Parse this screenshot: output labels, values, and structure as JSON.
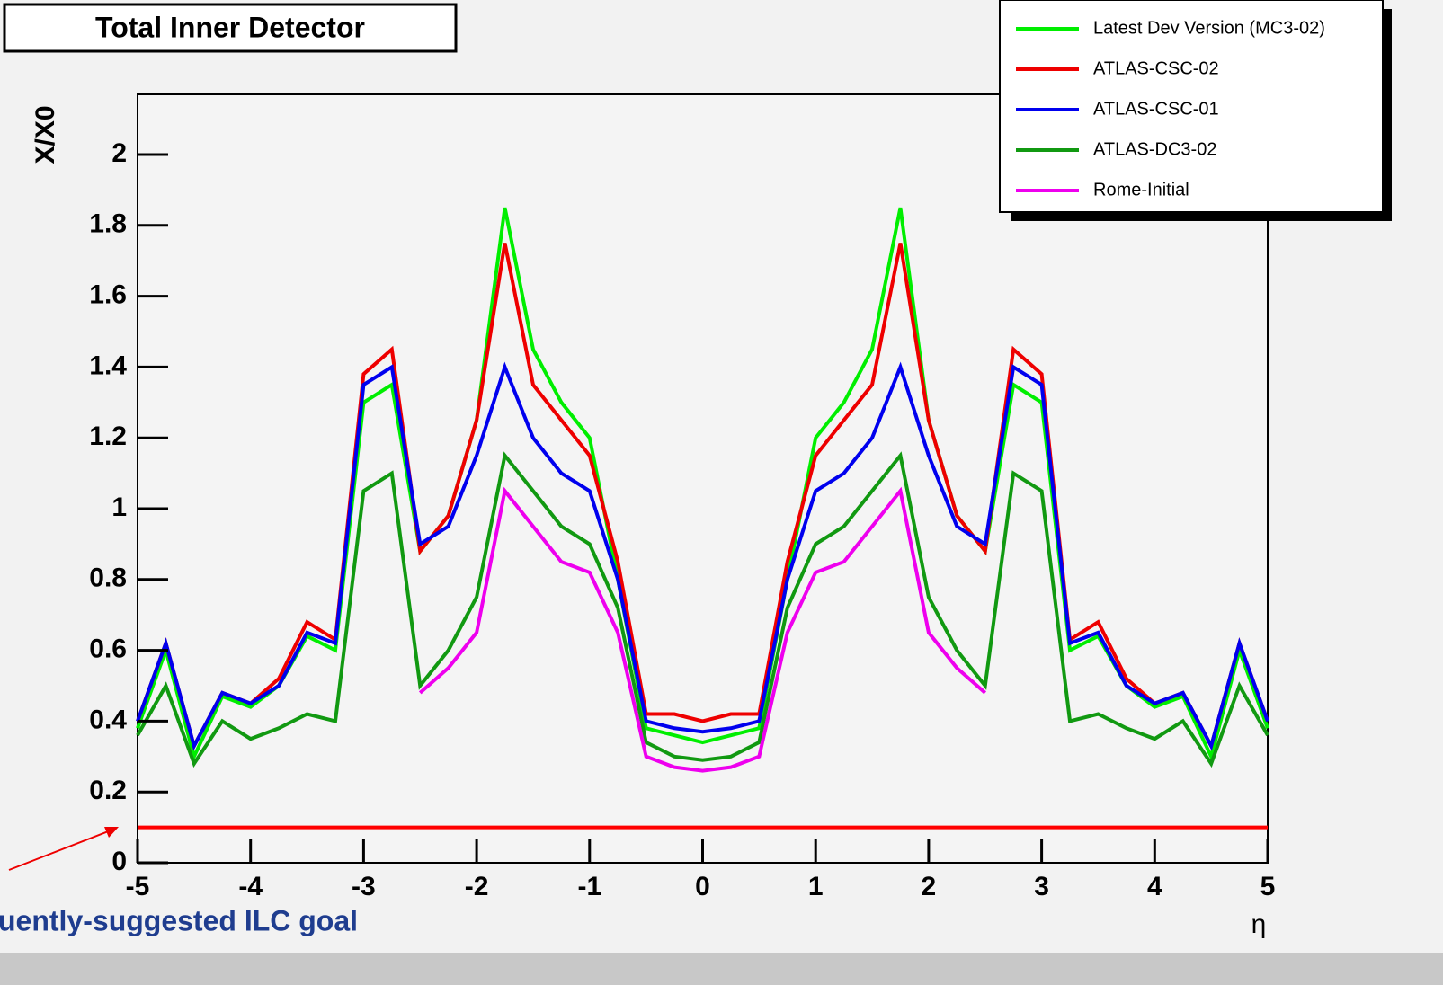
{
  "chart_data": {
    "type": "line",
    "title": "Total Inner Detector",
    "y_label": "X/X0",
    "x_label": "η",
    "annotation": "uently-suggested ILC goal",
    "goal_line": {
      "value": 0.1,
      "color": "#ff0000"
    },
    "x": [
      -5,
      -4.75,
      -4.5,
      -4.25,
      -4,
      -3.75,
      -3.5,
      -3.25,
      -3,
      -2.75,
      -2.5,
      -2.25,
      -2,
      -1.75,
      -1.5,
      -1.25,
      -1,
      -0.75,
      -0.5,
      -0.25,
      0,
      0.25,
      0.5,
      0.75,
      1,
      1.25,
      1.5,
      1.75,
      2,
      2.25,
      2.5,
      2.75,
      3,
      3.25,
      3.5,
      3.75,
      4,
      4.25,
      4.5,
      4.75,
      5
    ],
    "series": [
      {
        "name": "Latest Dev Version (MC3-02)",
        "color": "#00ee00",
        "values": [
          0.38,
          0.6,
          0.3,
          0.47,
          0.44,
          0.5,
          0.64,
          0.6,
          1.3,
          1.35,
          0.88,
          0.98,
          1.25,
          1.85,
          1.45,
          1.3,
          1.2,
          0.8,
          0.38,
          0.36,
          0.34,
          0.36,
          0.38,
          0.8,
          1.2,
          1.3,
          1.45,
          1.85,
          1.25,
          0.98,
          0.88,
          1.35,
          1.3,
          0.6,
          0.64,
          0.5,
          0.44,
          0.47,
          0.3,
          0.6,
          0.38
        ]
      },
      {
        "name": "ATLAS-CSC-02",
        "color": "#ee0000",
        "values": [
          0.4,
          0.62,
          0.33,
          0.48,
          0.45,
          0.52,
          0.68,
          0.63,
          1.38,
          1.45,
          0.88,
          0.98,
          1.25,
          1.75,
          1.35,
          1.25,
          1.15,
          0.85,
          0.42,
          0.42,
          0.4,
          0.42,
          0.42,
          0.85,
          1.15,
          1.25,
          1.35,
          1.75,
          1.25,
          0.98,
          0.88,
          1.45,
          1.38,
          0.63,
          0.68,
          0.52,
          0.45,
          0.48,
          0.33,
          0.62,
          0.4
        ]
      },
      {
        "name": "ATLAS-CSC-01",
        "color": "#0000ee",
        "values": [
          0.4,
          0.62,
          0.33,
          0.48,
          0.45,
          0.5,
          0.65,
          0.62,
          1.35,
          1.4,
          0.9,
          0.95,
          1.15,
          1.4,
          1.2,
          1.1,
          1.05,
          0.8,
          0.4,
          0.38,
          0.37,
          0.38,
          0.4,
          0.8,
          1.05,
          1.1,
          1.2,
          1.4,
          1.15,
          0.95,
          0.9,
          1.4,
          1.35,
          0.62,
          0.65,
          0.5,
          0.45,
          0.48,
          0.33,
          0.62,
          0.4
        ]
      },
      {
        "name": "ATLAS-DC3-02",
        "color": "#119911",
        "values": [
          0.36,
          0.5,
          0.28,
          0.4,
          0.35,
          0.38,
          0.42,
          0.4,
          1.05,
          1.1,
          0.5,
          0.6,
          0.75,
          1.15,
          1.05,
          0.95,
          0.9,
          0.72,
          0.34,
          0.3,
          0.29,
          0.3,
          0.34,
          0.72,
          0.9,
          0.95,
          1.05,
          1.15,
          0.75,
          0.6,
          0.5,
          1.1,
          1.05,
          0.4,
          0.42,
          0.38,
          0.35,
          0.4,
          0.28,
          0.5,
          0.36
        ]
      },
      {
        "name": "Rome-Initial",
        "color": "#ee00ee",
        "values": [
          null,
          null,
          null,
          null,
          null,
          null,
          null,
          0.38,
          null,
          null,
          0.48,
          0.55,
          0.65,
          1.05,
          0.95,
          0.85,
          0.82,
          0.65,
          0.3,
          0.27,
          0.26,
          0.27,
          0.3,
          0.65,
          0.82,
          0.85,
          0.95,
          1.05,
          0.65,
          0.55,
          0.48,
          null,
          null,
          0.38,
          null,
          null,
          null,
          null,
          null,
          null,
          null
        ]
      }
    ],
    "xlim": [
      -5,
      5
    ],
    "ylim": [
      0,
      2.17
    ],
    "xticks": [
      -5,
      -4,
      -3,
      -2,
      -1,
      0,
      1,
      2,
      3,
      4,
      5
    ],
    "yticks": [
      0,
      0.2,
      0.4,
      0.6,
      0.8,
      1,
      1.2,
      1.4,
      1.6,
      1.8,
      2
    ],
    "legend": "top-right"
  }
}
